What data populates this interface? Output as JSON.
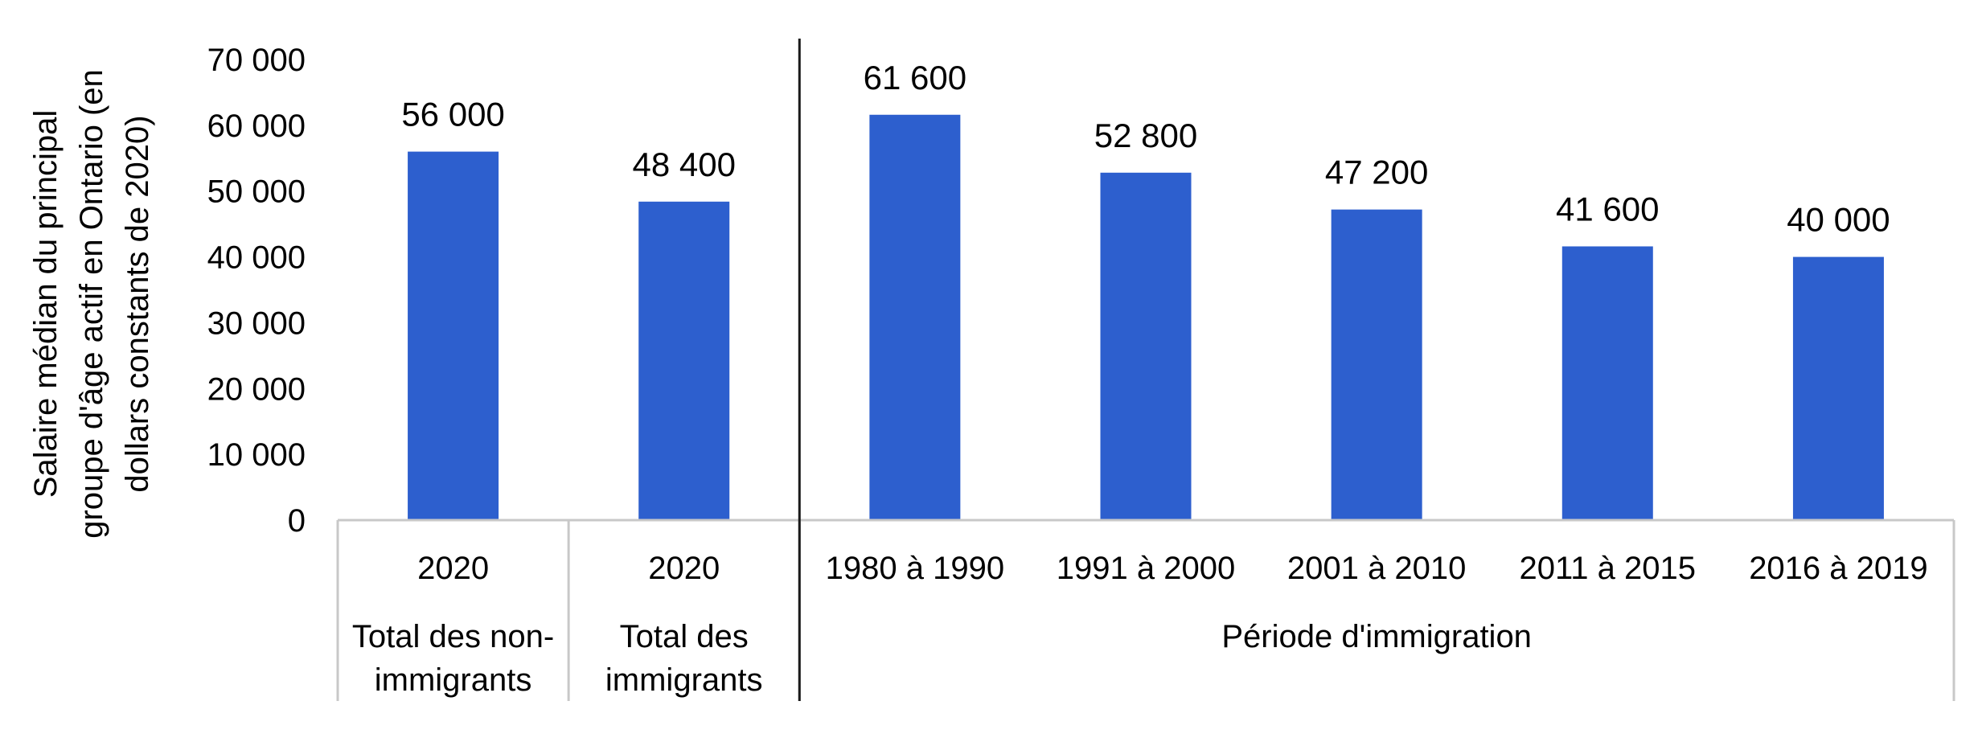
{
  "chart_data": {
    "type": "bar",
    "title": "",
    "xlabel": "",
    "ylabel_lines": [
      "Salaire médian du principal",
      "groupe d'âge actif en Ontario (en",
      "dollars constants de 2020)"
    ],
    "ylim": [
      0,
      70000
    ],
    "yticks": [
      0,
      10000,
      20000,
      30000,
      40000,
      50000,
      60000,
      70000
    ],
    "ytick_labels": [
      "0",
      "10 000",
      "20 000",
      "30 000",
      "40 000",
      "50 000",
      "60 000",
      "70 000"
    ],
    "grid": false,
    "legend": "none",
    "bar_color": "#2d5fce",
    "categories": [
      "2020",
      "2020",
      "1980 à 1990",
      "1991 à 2000",
      "2001 à 2010",
      "2011 à 2015",
      "2016 à 2019"
    ],
    "values": [
      56000,
      48400,
      61600,
      52800,
      47200,
      41600,
      40000
    ],
    "data_labels": [
      "56 000",
      "48 400",
      "61 600",
      "52 800",
      "47 200",
      "41 600",
      "40 000"
    ],
    "groups": [
      {
        "lines": [
          "Total des non-",
          "immigrants"
        ],
        "start": 0,
        "end": 0
      },
      {
        "lines": [
          "Total des",
          "immigrants"
        ],
        "start": 1,
        "end": 1
      },
      {
        "lines": [
          "Période d'immigration"
        ],
        "start": 2,
        "end": 6
      }
    ]
  }
}
